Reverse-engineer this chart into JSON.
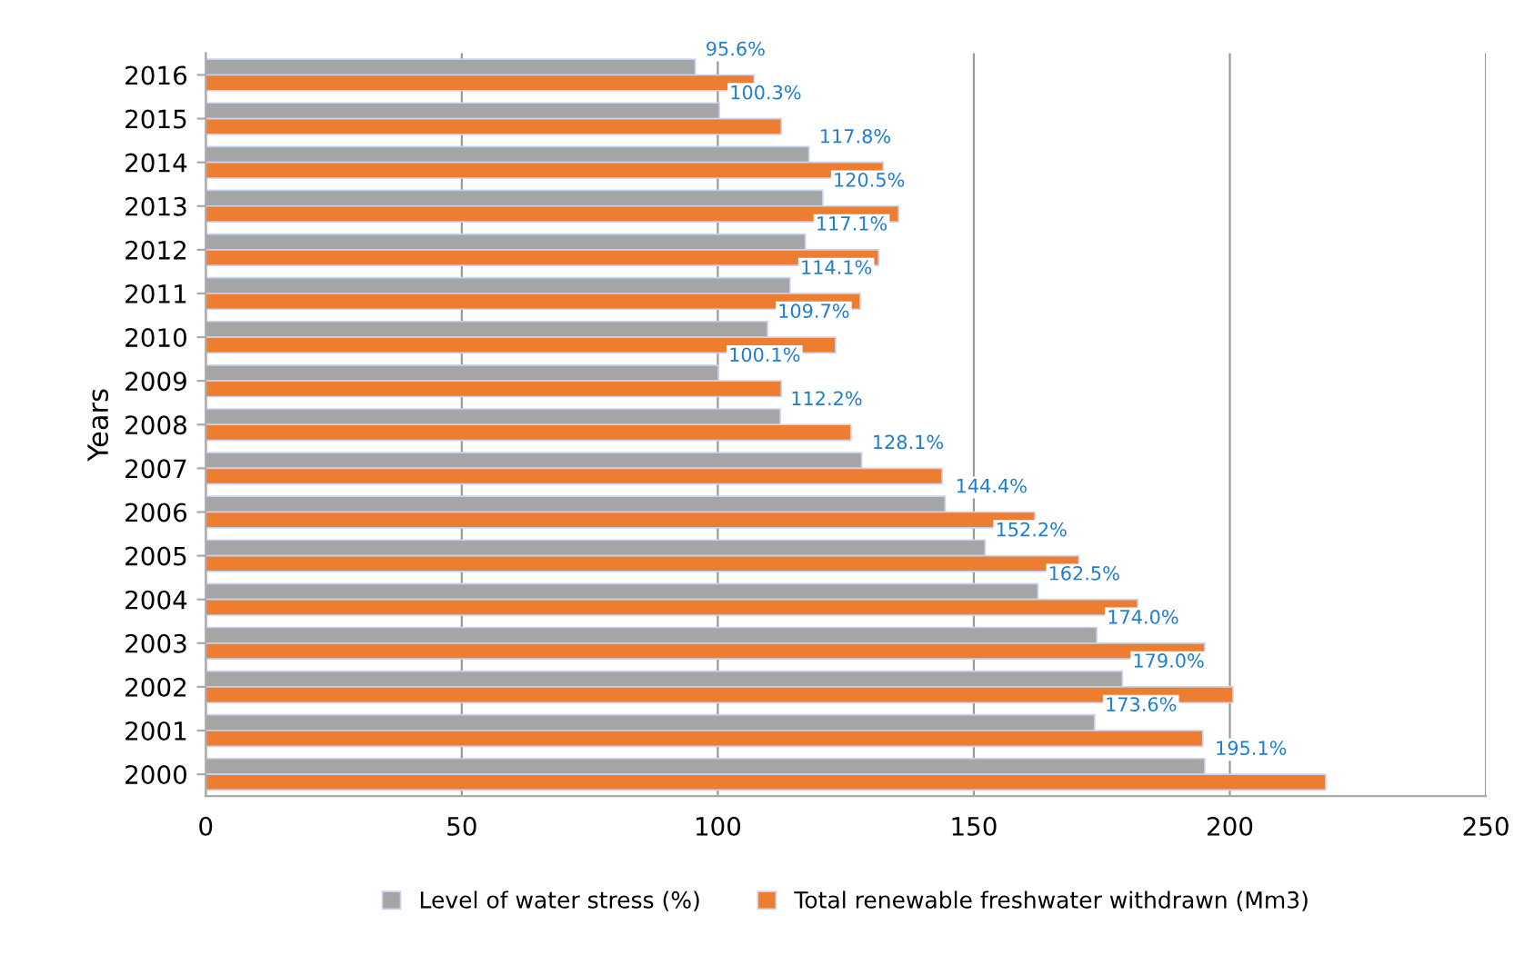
{
  "chart_data": {
    "type": "bar",
    "orientation": "horizontal",
    "ylabel": "Years",
    "categories": [
      "2016",
      "2015",
      "2014",
      "2013",
      "2012",
      "2011",
      "2010",
      "2009",
      "2008",
      "2007",
      "2006",
      "2005",
      "2004",
      "2003",
      "2002",
      "2001",
      "2000"
    ],
    "series": [
      {
        "name": "Level of water stress (%)",
        "color": "#a5a5a5",
        "values": [
          95.6,
          100.3,
          117.8,
          120.5,
          117.1,
          114.1,
          109.7,
          100.1,
          112.2,
          128.1,
          144.4,
          152.2,
          162.5,
          174.0,
          179.0,
          173.6,
          195.1
        ],
        "value_labels": [
          "95.6%",
          "100.3%",
          "117.8%",
          "120.5%",
          "117.1%",
          "114.1%",
          "109.7%",
          "100.1%",
          "112.2%",
          "128.1%",
          "144.4%",
          "152.2%",
          "162.5%",
          "174.0%",
          "179.0%",
          "173.6%",
          "195.1%"
        ]
      },
      {
        "name": "Total renewable freshwater withdrawn (Mm3)",
        "color": "#ed7d31",
        "values": [
          107.1,
          112.4,
          132.3,
          135.3,
          131.4,
          127.8,
          123.0,
          112.4,
          126.0,
          143.8,
          161.9,
          170.5,
          182.0,
          195.1,
          200.6,
          194.7,
          218.7
        ]
      }
    ],
    "xlim": [
      0,
      250
    ],
    "xticks": [
      0,
      50,
      100,
      150,
      200,
      250
    ],
    "grid": "x",
    "legend": "bottom"
  }
}
